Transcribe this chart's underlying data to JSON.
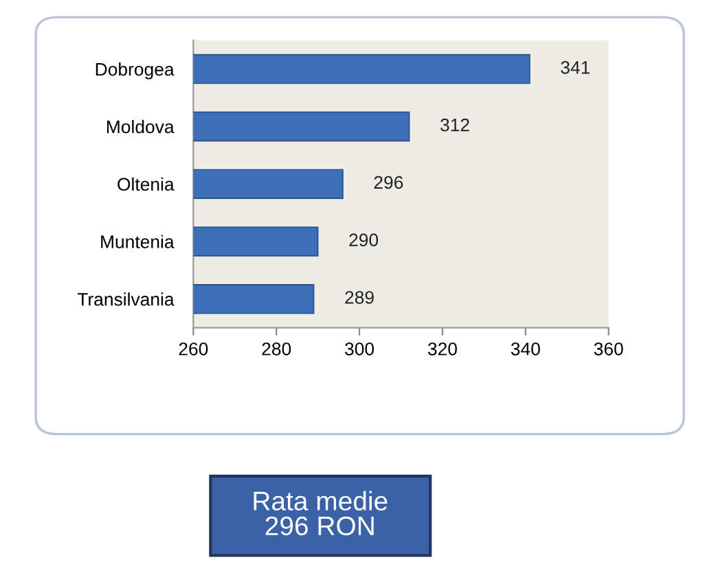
{
  "chart_data": {
    "type": "bar",
    "orientation": "horizontal",
    "categories": [
      "Dobrogea",
      "Moldova",
      "Oltenia",
      "Muntenia",
      "Transilvania"
    ],
    "values": [
      341,
      312,
      296,
      290,
      289
    ],
    "color": "#3d6eb8",
    "data_labels": true,
    "xlim": [
      260,
      360
    ],
    "xticks": [
      260,
      280,
      300,
      320,
      340,
      360
    ],
    "annotations": [
      "Rata medie\n296 RON"
    ]
  }
}
